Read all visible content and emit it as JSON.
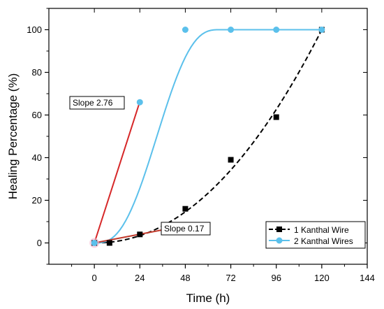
{
  "chart_data": {
    "type": "line",
    "title": "",
    "xlabel": "Time (h)",
    "ylabel": "Healing Percentage (%)",
    "xlim": [
      -24,
      144
    ],
    "ylim": [
      -10,
      110
    ],
    "xticks": [
      0,
      24,
      48,
      72,
      96,
      120,
      144
    ],
    "yticks": [
      0,
      20,
      40,
      60,
      80,
      100
    ],
    "legend_position": "bottom-right",
    "series": [
      {
        "name": "1 Kanthal Wire",
        "color": "#000000",
        "marker": "square",
        "line_style": "dashed",
        "x": [
          0,
          8,
          24,
          48,
          72,
          96,
          120
        ],
        "y": [
          0,
          0,
          4,
          16,
          39,
          59,
          100
        ]
      },
      {
        "name": "2 Kanthal Wires",
        "color": "#5bc0eb",
        "marker": "circle",
        "line_style": "solid",
        "x": [
          0,
          24,
          48,
          72,
          96,
          120
        ],
        "y": [
          0,
          66,
          100,
          100,
          100,
          100
        ]
      }
    ],
    "fit_curves": [
      {
        "series": "1 Kanthal Wire",
        "shape": "power",
        "x_range": [
          0,
          120
        ],
        "exponent": 2.1,
        "color": "#000000"
      },
      {
        "series": "2 Kanthal Wires",
        "shape": "logistic-plateau",
        "x_range": [
          0,
          120
        ],
        "plateau": 100,
        "color": "#5bc0eb"
      }
    ],
    "annotations": [
      {
        "label": "Slope 2.76",
        "slope": 2.76,
        "x": [
          0,
          24
        ],
        "color": "#d62728"
      },
      {
        "label": "Slope 0.17",
        "slope": 0.17,
        "x": [
          0,
          40
        ],
        "color": "#c0392b"
      }
    ]
  }
}
